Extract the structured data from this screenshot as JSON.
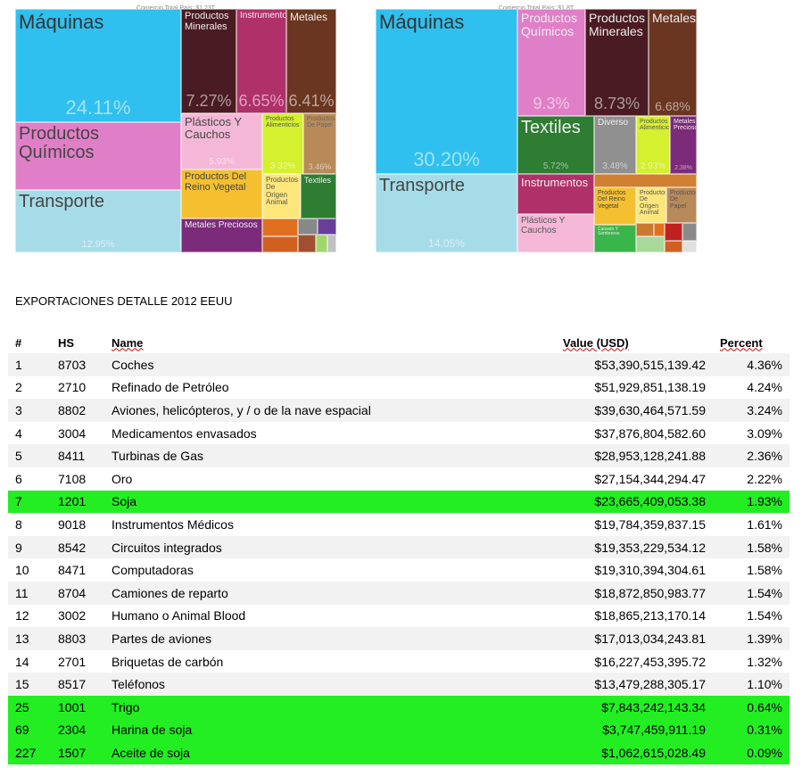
{
  "treemaps": [
    {
      "subtitle": "Comercio Total País: $1.23T",
      "tiles": [
        {
          "label": "Máquinas",
          "percent": "24.11%"
        },
        {
          "label": "Productos Químicos"
        },
        {
          "label": "Transporte",
          "percent": "12.95%"
        },
        {
          "label": "Productos Minerales",
          "percent": "7.27%"
        },
        {
          "label": "Instrumentos",
          "percent": "6.65%"
        },
        {
          "label": "Metales",
          "percent": "6.41%"
        },
        {
          "label": "Plásticos Y Cauchos",
          "percent": "5.93%"
        },
        {
          "label": "Productos Alimenticios",
          "percent": "3.32%"
        },
        {
          "label": "Productos De Papel",
          "percent": "3.46%"
        },
        {
          "label": "Productos Del Reino Vegetal"
        },
        {
          "label": "Productos De Origen Animal"
        },
        {
          "label": "Textiles"
        },
        {
          "label": "Metales Preciosos"
        }
      ]
    },
    {
      "subtitle": "Comercio Total País: $1.8T",
      "tiles": [
        {
          "label": "Máquinas",
          "percent": "30.20%"
        },
        {
          "label": "Transporte",
          "percent": "14.05%"
        },
        {
          "label": "Productos Químicos",
          "percent": "9.3%"
        },
        {
          "label": "Productos Minerales",
          "percent": "8.73%"
        },
        {
          "label": "Metales",
          "percent": "6.68%"
        },
        {
          "label": "Textiles",
          "percent": "5.72%"
        },
        {
          "label": "Diverso",
          "percent": "3.48%"
        },
        {
          "label": "Productos Alimenticios",
          "percent": "2.93%"
        },
        {
          "label": "Metales Preciosos",
          "percent": "2.38%"
        },
        {
          "label": "Instrumentos"
        },
        {
          "label": "Plásticos Y Cauchos"
        },
        {
          "label": "Productos Del Reino Vegetal"
        },
        {
          "label": "Productos De Origen Animal"
        },
        {
          "label": "Productos De Papel"
        },
        {
          "label": "Calzado Y Sombreros"
        }
      ]
    }
  ],
  "heading": "EXPORTACIONES DETALLE 2012 EEUU",
  "table": {
    "columns": [
      "#",
      "HS",
      "Name",
      "Value (USD)",
      "Percent"
    ],
    "rows": [
      {
        "cells": [
          "1",
          "8703",
          "Coches",
          "$53,390,515,139.42",
          "4.36%"
        ],
        "highlight": false
      },
      {
        "cells": [
          "2",
          "2710",
          "Refinado de Petróleo",
          "$51,929,851,138.19",
          "4.24%"
        ],
        "highlight": false
      },
      {
        "cells": [
          "3",
          "8802",
          "Aviones, helicópteros, y / o de la nave espacial",
          "$39,630,464,571.59",
          "3.24%"
        ],
        "highlight": false
      },
      {
        "cells": [
          "4",
          "3004",
          "Medicamentos envasados",
          "$37,876,804,582.60",
          "3.09%"
        ],
        "highlight": false
      },
      {
        "cells": [
          "5",
          "8411",
          "Turbinas de Gas",
          "$28,953,128,241.88",
          "2.36%"
        ],
        "highlight": false
      },
      {
        "cells": [
          "6",
          "7108",
          "Oro",
          "$27,154,344,294.47",
          "2.22%"
        ],
        "highlight": false
      },
      {
        "cells": [
          "7",
          "1201",
          "Soja",
          "$23,665,409,053.38",
          "1.93%"
        ],
        "highlight": true
      },
      {
        "cells": [
          "8",
          "9018",
          "Instrumentos Médicos",
          "$19,784,359,837.15",
          "1.61%"
        ],
        "highlight": false
      },
      {
        "cells": [
          "9",
          "8542",
          "Circuitos integrados",
          "$19,353,229,534.12",
          "1.58%"
        ],
        "highlight": false
      },
      {
        "cells": [
          "10",
          "8471",
          "Computadoras",
          "$19,310,394,304.61",
          "1.58%"
        ],
        "highlight": false
      },
      {
        "cells": [
          "11",
          "8704",
          "Camiones de reparto",
          "$18,872,850,983.77",
          "1.54%"
        ],
        "highlight": false
      },
      {
        "cells": [
          "12",
          "3002",
          "Humano o Animal Blood",
          "$18,865,213,170.14",
          "1.54%"
        ],
        "highlight": false
      },
      {
        "cells": [
          "13",
          "8803",
          "Partes de aviones",
          "$17,013,034,243.81",
          "1.39%"
        ],
        "highlight": false
      },
      {
        "cells": [
          "14",
          "2701",
          "Briquetas de carbón",
          "$16,227,453,395.72",
          "1.32%"
        ],
        "highlight": false
      },
      {
        "cells": [
          "15",
          "8517",
          "Teléfonos",
          "$13,479,288,305.17",
          "1.10%"
        ],
        "highlight": false
      },
      {
        "cells": [
          "25",
          "1001",
          "Trigo",
          "$7,843,242,143.34",
          "0.64%"
        ],
        "highlight": true
      },
      {
        "cells": [
          "69",
          "2304",
          "Harina de soja",
          "$3,747,459,911.19",
          "0.31%"
        ],
        "highlight": true
      },
      {
        "cells": [
          "227",
          "1507",
          "Aceite de soja",
          "$1,062,615,028.49",
          "0.09%"
        ],
        "highlight": true
      }
    ]
  }
}
